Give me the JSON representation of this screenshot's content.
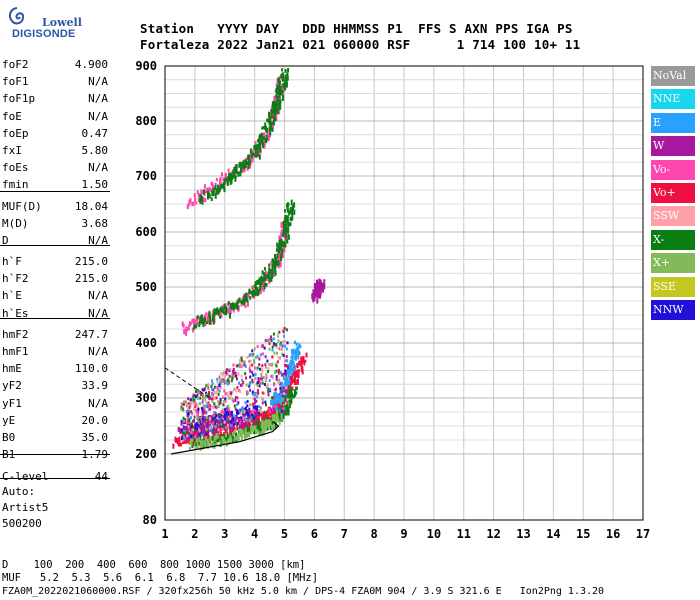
{
  "brand": {
    "line1": "Lowell",
    "line2": "DIGISONDE"
  },
  "header": {
    "line1": "Station   YYYY DAY   DDD HHMMSS P1  FFS S AXN PPS IGA PS",
    "line2": "Fortaleza 2022 Jan21 021 060000 RSF      1 714 100 10+ 11"
  },
  "params": [
    {
      "label": "foF2",
      "value": "4.900"
    },
    {
      "label": "foF1",
      "value": "N/A"
    },
    {
      "label": "foF1p",
      "value": "N/A"
    },
    {
      "label": "foE",
      "value": "N/A"
    },
    {
      "label": "foEp",
      "value": "0.47"
    },
    {
      "label": "fxI",
      "value": "5.80"
    },
    {
      "label": "foEs",
      "value": "N/A"
    },
    {
      "label": "fmin",
      "value": "1.50"
    },
    {
      "label": "MUF(D)",
      "value": "18.04"
    },
    {
      "label": "M(D)",
      "value": "3.68"
    },
    {
      "label": "D",
      "value": "N/A"
    },
    {
      "label": "h`F",
      "value": "215.0"
    },
    {
      "label": "h`F2",
      "value": "215.0"
    },
    {
      "label": "h`E",
      "value": "N/A"
    },
    {
      "label": "h`Es",
      "value": "N/A"
    },
    {
      "label": "hmF2",
      "value": "247.7"
    },
    {
      "label": "hmF1",
      "value": "N/A"
    },
    {
      "label": "hmE",
      "value": "110.0"
    },
    {
      "label": "yF2",
      "value": "33.9"
    },
    {
      "label": "yF1",
      "value": "N/A"
    },
    {
      "label": "yE",
      "value": "20.0"
    },
    {
      "label": "B0",
      "value": "35.0"
    },
    {
      "label": "B1",
      "value": "1.79"
    },
    {
      "label": "C-level",
      "value": "44"
    }
  ],
  "auto": {
    "line1": "Auto:",
    "line2": "Artist5",
    "line3": "500200"
  },
  "legend": [
    {
      "label": "NoVal",
      "bg": "#9a9a9a",
      "fg": "#ffffff"
    },
    {
      "label": "NNE",
      "bg": "#18d6f0",
      "fg": "#ffffff"
    },
    {
      "label": "E",
      "bg": "#2aa0ff",
      "fg": "#ffffff"
    },
    {
      "label": "W",
      "bg": "#a8189e",
      "fg": "#ffffff"
    },
    {
      "label": "Vo-",
      "bg": "#ff45b0",
      "fg": "#ffffff"
    },
    {
      "label": "Vo+",
      "bg": "#ee1040",
      "fg": "#ffffff"
    },
    {
      "label": "SSW",
      "bg": "#ffa0a8",
      "fg": "#ffffff"
    },
    {
      "label": "X-",
      "bg": "#0a7d12",
      "fg": "#ffffff"
    },
    {
      "label": "X+",
      "bg": "#82ba5a",
      "fg": "#ffffff"
    },
    {
      "label": "SSE",
      "bg": "#c2c820",
      "fg": "#ffffff"
    },
    {
      "label": "NNW",
      "bg": "#2010d8",
      "fg": "#ffffff"
    }
  ],
  "footer": {
    "dist_row": "D    100  200  400  600  800 1000 1500 3000 [km]",
    "muf_row": "MUF   5.2  5.3  5.6  6.1  6.8  7.7 10.6 18.0 [MHz]",
    "file_row": "FZA0M_2022021060000.RSF / 320fx256h 50 kHz 5.0 km / DPS-4 FZA0M 904 / 3.9 S 321.6 E   Ion2Png 1.3.20"
  },
  "chart_data": {
    "type": "scatter",
    "x_ticks": [
      1,
      2,
      3,
      4,
      5,
      6,
      7,
      8,
      9,
      10,
      11,
      12,
      13,
      14,
      15,
      16,
      17
    ],
    "y_ticks": [
      80,
      200,
      300,
      400,
      500,
      600,
      700,
      800,
      900
    ],
    "xlim": [
      1,
      17
    ],
    "ylim": [
      80,
      900
    ],
    "grid": true,
    "trace_segments": [
      {
        "name": "O-trace low",
        "color": "#ee1040",
        "points": [
          [
            1.3,
            225
          ],
          [
            2.0,
            232
          ],
          [
            3.0,
            245
          ],
          [
            4.0,
            262
          ],
          [
            4.5,
            275
          ],
          [
            4.8,
            290
          ],
          [
            5.0,
            310
          ],
          [
            5.3,
            340
          ],
          [
            5.6,
            380
          ]
        ]
      },
      {
        "name": "X-trace low",
        "color": "#0a7d12",
        "points": [
          [
            2.0,
            222
          ],
          [
            3.0,
            232
          ],
          [
            4.0,
            248
          ],
          [
            4.6,
            262
          ],
          [
            5.0,
            285
          ],
          [
            5.3,
            320
          ]
        ]
      },
      {
        "name": "X+ low",
        "color": "#82ba5a",
        "points": [
          [
            1.8,
            220
          ],
          [
            3.0,
            230
          ],
          [
            4.2,
            250
          ],
          [
            4.8,
            270
          ]
        ]
      },
      {
        "name": "NNW low",
        "color": "#2010d8",
        "points": [
          [
            1.6,
            255
          ],
          [
            2.5,
            262
          ],
          [
            3.2,
            270
          ],
          [
            4.0,
            280
          ]
        ]
      },
      {
        "name": "W low",
        "color": "#a8189e",
        "points": [
          [
            1.5,
            240
          ],
          [
            2.2,
            248
          ],
          [
            3.0,
            258
          ],
          [
            4.0,
            270
          ]
        ]
      },
      {
        "name": "E low",
        "color": "#2aa0ff",
        "points": [
          [
            4.6,
            290
          ],
          [
            4.9,
            320
          ],
          [
            5.2,
            360
          ],
          [
            5.4,
            400
          ]
        ]
      },
      {
        "name": "second hop O",
        "color": "#ff45b0",
        "points": [
          [
            1.6,
            430
          ],
          [
            2.5,
            450
          ],
          [
            3.5,
            475
          ],
          [
            4.3,
            510
          ],
          [
            4.8,
            560
          ],
          [
            5.0,
            620
          ]
        ]
      },
      {
        "name": "second hop X",
        "color": "#0a7d12",
        "points": [
          [
            2.0,
            440
          ],
          [
            3.0,
            460
          ],
          [
            4.0,
            495
          ],
          [
            4.6,
            540
          ],
          [
            5.0,
            600
          ],
          [
            5.2,
            660
          ]
        ]
      },
      {
        "name": "third hop O",
        "color": "#ff45b0",
        "points": [
          [
            1.8,
            655
          ],
          [
            2.8,
            690
          ],
          [
            3.8,
            730
          ],
          [
            4.3,
            770
          ],
          [
            4.7,
            830
          ],
          [
            4.9,
            885
          ]
        ]
      },
      {
        "name": "third hop X",
        "color": "#0a7d12",
        "points": [
          [
            2.2,
            660
          ],
          [
            3.2,
            700
          ],
          [
            4.0,
            745
          ],
          [
            4.5,
            800
          ],
          [
            4.8,
            850
          ],
          [
            5.0,
            895
          ]
        ]
      },
      {
        "name": "W echo",
        "color": "#a8189e",
        "points": [
          [
            6.0,
            485
          ],
          [
            6.1,
            500
          ],
          [
            6.2,
            510
          ]
        ]
      }
    ],
    "profile_curve": [
      [
        1.2,
        200
      ],
      [
        3.5,
        222
      ],
      [
        4.6,
        240
      ],
      [
        4.8,
        250
      ],
      [
        4.6,
        258
      ]
    ],
    "dashed_extrapolation": [
      [
        1.0,
        355
      ],
      [
        2.0,
        318
      ],
      [
        2.5,
        300
      ]
    ]
  }
}
